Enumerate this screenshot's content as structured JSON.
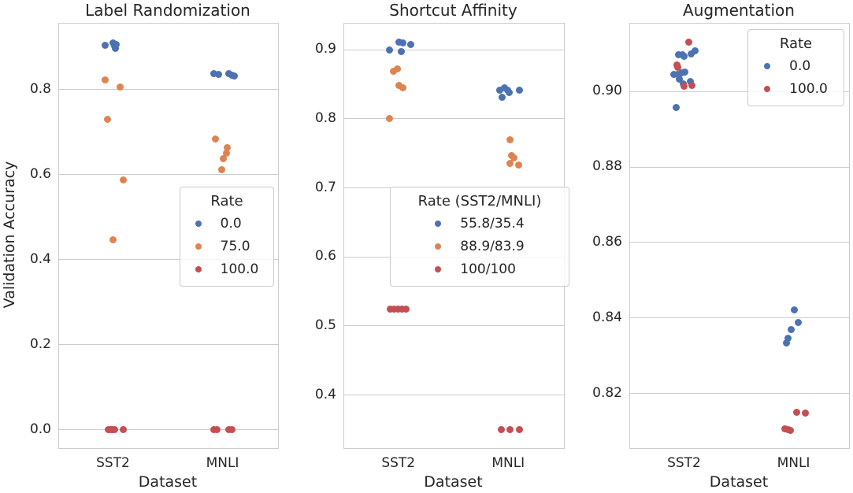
{
  "figure": {
    "ylabel": "Validation Accuracy",
    "background": "#ffffff",
    "text_color": "#262626",
    "grid_color": "#cccccc",
    "palette": {
      "blue": "#4C72B0",
      "orange": "#DD8452",
      "red": "#C44E52"
    }
  },
  "chart_data": [
    {
      "type": "scatter",
      "title": "Label Randomization",
      "xlabel": "Dataset",
      "ylabel": "Validation Accuracy",
      "categories": [
        "SST2",
        "MNLI"
      ],
      "ylim": [
        -0.043,
        0.955
      ],
      "yticks": [
        0.0,
        0.2,
        0.4,
        0.6,
        0.8
      ],
      "ytick_labels": [
        "0.0",
        "0.2",
        "0.4",
        "0.6",
        "0.8"
      ],
      "grid": true,
      "legend": {
        "title": "Rate",
        "position": "center right",
        "entries": [
          {
            "label": "0.0",
            "color": "blue"
          },
          {
            "label": "75.0",
            "color": "orange"
          },
          {
            "label": "100.0",
            "color": "red"
          }
        ]
      },
      "series": [
        {
          "name": "0.0",
          "color": "blue",
          "points": [
            {
              "x": "SST2",
              "y": 0.905,
              "jitter": -11
            },
            {
              "x": "SST2",
              "y": 0.91,
              "jitter": -1
            },
            {
              "x": "SST2",
              "y": 0.906,
              "jitter": 3
            },
            {
              "x": "SST2",
              "y": 0.902,
              "jitter": 0.5
            },
            {
              "x": "SST2",
              "y": 0.896,
              "jitter": 2
            },
            {
              "x": "MNLI",
              "y": 0.838,
              "jitter": -12
            },
            {
              "x": "MNLI",
              "y": 0.836,
              "jitter": -6.5
            },
            {
              "x": "MNLI",
              "y": 0.837,
              "jitter": 7
            },
            {
              "x": "MNLI",
              "y": 0.834,
              "jitter": 10.5
            },
            {
              "x": "MNLI",
              "y": 0.832,
              "jitter": 13.5
            }
          ]
        },
        {
          "name": "75.0",
          "color": "orange",
          "points": [
            {
              "x": "SST2",
              "y": 0.822,
              "jitter": -11
            },
            {
              "x": "SST2",
              "y": 0.806,
              "jitter": 8
            },
            {
              "x": "SST2",
              "y": 0.73,
              "jitter": -8
            },
            {
              "x": "SST2",
              "y": 0.588,
              "jitter": 12
            },
            {
              "x": "SST2",
              "y": 0.447,
              "jitter": -1
            },
            {
              "x": "MNLI",
              "y": 0.684,
              "jitter": -10.5
            },
            {
              "x": "MNLI",
              "y": 0.664,
              "jitter": 5
            },
            {
              "x": "MNLI",
              "y": 0.651,
              "jitter": 3.5
            },
            {
              "x": "MNLI",
              "y": 0.638,
              "jitter": 0
            },
            {
              "x": "MNLI",
              "y": 0.611,
              "jitter": -2
            }
          ]
        },
        {
          "name": "100.0",
          "color": "red",
          "points": [
            {
              "x": "SST2",
              "y": 0.0,
              "jitter": -7.5
            },
            {
              "x": "SST2",
              "y": 0.0,
              "jitter": -4.5
            },
            {
              "x": "SST2",
              "y": 0.0,
              "jitter": -1.8
            },
            {
              "x": "SST2",
              "y": 0.0,
              "jitter": 0.8
            },
            {
              "x": "SST2",
              "y": 0.0,
              "jitter": 11.5
            },
            {
              "x": "MNLI",
              "y": 0.0,
              "jitter": -12.5
            },
            {
              "x": "MNLI",
              "y": 0.0,
              "jitter": -8.5
            },
            {
              "x": "MNLI",
              "y": 0.0,
              "jitter": 6.5
            },
            {
              "x": "MNLI",
              "y": 0.0,
              "jitter": 10.5
            }
          ]
        }
      ]
    },
    {
      "type": "scatter",
      "title": "Shortcut Affinity",
      "xlabel": "Dataset",
      "ylabel": "Validation Accuracy",
      "categories": [
        "SST2",
        "MNLI"
      ],
      "ylim": [
        0.323,
        0.938
      ],
      "yticks": [
        0.4,
        0.5,
        0.6,
        0.7,
        0.8,
        0.9
      ],
      "ytick_labels": [
        "0.4",
        "0.5",
        "0.6",
        "0.7",
        "0.8",
        "0.9"
      ],
      "grid": true,
      "legend": {
        "title": "Rate (SST2/MNLI)",
        "position": "lower center",
        "entries": [
          {
            "label": "55.8/35.4",
            "color": "blue"
          },
          {
            "label": "88.9/83.9",
            "color": "orange"
          },
          {
            "label": "100/100",
            "color": "red"
          }
        ]
      },
      "series": [
        {
          "name": "55.8/35.4",
          "color": "blue",
          "points": [
            {
              "x": "SST2",
              "y": 0.9,
              "jitter": -12
            },
            {
              "x": "SST2",
              "y": 0.911,
              "jitter": 0
            },
            {
              "x": "SST2",
              "y": 0.91,
              "jitter": 5
            },
            {
              "x": "SST2",
              "y": 0.898,
              "jitter": 2.5
            },
            {
              "x": "SST2",
              "y": 0.908,
              "jitter": 14.5
            },
            {
              "x": "MNLI",
              "y": 0.842,
              "jitter": -12
            },
            {
              "x": "MNLI",
              "y": 0.845,
              "jitter": -6
            },
            {
              "x": "MNLI",
              "y": 0.842,
              "jitter": -2
            },
            {
              "x": "MNLI",
              "y": 0.838,
              "jitter": 0.5
            },
            {
              "x": "MNLI",
              "y": 0.831,
              "jitter": -9
            },
            {
              "x": "MNLI",
              "y": 0.842,
              "jitter": 13
            }
          ]
        },
        {
          "name": "88.9/83.9",
          "color": "orange",
          "points": [
            {
              "x": "SST2",
              "y": 0.869,
              "jitter": -7
            },
            {
              "x": "SST2",
              "y": 0.872,
              "jitter": -2
            },
            {
              "x": "SST2",
              "y": 0.848,
              "jitter": 0
            },
            {
              "x": "SST2",
              "y": 0.845,
              "jitter": 4.5
            },
            {
              "x": "SST2",
              "y": 0.8,
              "jitter": -12
            },
            {
              "x": "MNLI",
              "y": 0.77,
              "jitter": 1
            },
            {
              "x": "MNLI",
              "y": 0.747,
              "jitter": 3.5
            },
            {
              "x": "MNLI",
              "y": 0.744,
              "jitter": 6
            },
            {
              "x": "MNLI",
              "y": 0.736,
              "jitter": 1.5
            },
            {
              "x": "MNLI",
              "y": 0.733,
              "jitter": 12.5
            }
          ]
        },
        {
          "name": "100/100",
          "color": "red",
          "points": [
            {
              "x": "SST2",
              "y": 0.524,
              "jitter": -11
            },
            {
              "x": "SST2",
              "y": 0.524,
              "jitter": -6
            },
            {
              "x": "SST2",
              "y": 0.524,
              "jitter": -1
            },
            {
              "x": "SST2",
              "y": 0.524,
              "jitter": 4
            },
            {
              "x": "SST2",
              "y": 0.524,
              "jitter": 9
            },
            {
              "x": "MNLI",
              "y": 0.35,
              "jitter": -10
            },
            {
              "x": "MNLI",
              "y": 0.35,
              "jitter": 1.5
            },
            {
              "x": "MNLI",
              "y": 0.35,
              "jitter": 13
            }
          ]
        }
      ]
    },
    {
      "type": "scatter",
      "title": "Augmentation",
      "xlabel": "Dataset",
      "ylabel": "Validation Accuracy",
      "categories": [
        "SST2",
        "MNLI"
      ],
      "ylim": [
        0.8055,
        0.918
      ],
      "yticks": [
        0.82,
        0.84,
        0.86,
        0.88,
        0.9
      ],
      "ytick_labels": [
        "0.82",
        "0.84",
        "0.86",
        "0.88",
        "0.90"
      ],
      "grid": true,
      "legend": {
        "title": "Rate",
        "position": "upper right",
        "entries": [
          {
            "label": "0.0",
            "color": "blue"
          },
          {
            "label": "100.0",
            "color": "red"
          }
        ]
      },
      "series": [
        {
          "name": "0.0",
          "color": "blue",
          "points": [
            {
              "x": "SST2",
              "y": 0.9097,
              "jitter": -8.5
            },
            {
              "x": "SST2",
              "y": 0.9097,
              "jitter": -3.5
            },
            {
              "x": "SST2",
              "y": 0.9093,
              "jitter": -1
            },
            {
              "x": "SST2",
              "y": 0.91,
              "jitter": 8
            },
            {
              "x": "SST2",
              "y": 0.9108,
              "jitter": 13
            },
            {
              "x": "SST2",
              "y": 0.9046,
              "jitter": -14
            },
            {
              "x": "SST2",
              "y": 0.9045,
              "jitter": -9.5
            },
            {
              "x": "SST2",
              "y": 0.9049,
              "jitter": -4.5
            },
            {
              "x": "SST2",
              "y": 0.9052,
              "jitter": -0.5
            },
            {
              "x": "SST2",
              "y": 0.9033,
              "jitter": -7
            },
            {
              "x": "SST2",
              "y": 0.9021,
              "jitter": -2
            },
            {
              "x": "SST2",
              "y": 0.9026,
              "jitter": 6.5
            },
            {
              "x": "SST2",
              "y": 0.8957,
              "jitter": -11
            },
            {
              "x": "MNLI",
              "y": 0.8422,
              "jitter": -0.5
            },
            {
              "x": "MNLI",
              "y": 0.8388,
              "jitter": 5
            },
            {
              "x": "MNLI",
              "y": 0.837,
              "jitter": -4
            },
            {
              "x": "MNLI",
              "y": 0.8346,
              "jitter": -8
            },
            {
              "x": "MNLI",
              "y": 0.8334,
              "jitter": -10.5
            }
          ]
        },
        {
          "name": "100.0",
          "color": "red",
          "points": [
            {
              "x": "SST2",
              "y": 0.913,
              "jitter": 4.5
            },
            {
              "x": "SST2",
              "y": 0.9071,
              "jitter": -10.5
            },
            {
              "x": "SST2",
              "y": 0.9064,
              "jitter": -9.5
            },
            {
              "x": "SST2",
              "y": 0.9014,
              "jitter": -1
            },
            {
              "x": "SST2",
              "y": 0.9016,
              "jitter": 9
            },
            {
              "x": "MNLI",
              "y": 0.815,
              "jitter": 3
            },
            {
              "x": "MNLI",
              "y": 0.8147,
              "jitter": 14
            },
            {
              "x": "MNLI",
              "y": 0.8107,
              "jitter": -12
            },
            {
              "x": "MNLI",
              "y": 0.8105,
              "jitter": -8.5
            },
            {
              "x": "MNLI",
              "y": 0.8103,
              "jitter": -5
            }
          ]
        }
      ]
    }
  ]
}
